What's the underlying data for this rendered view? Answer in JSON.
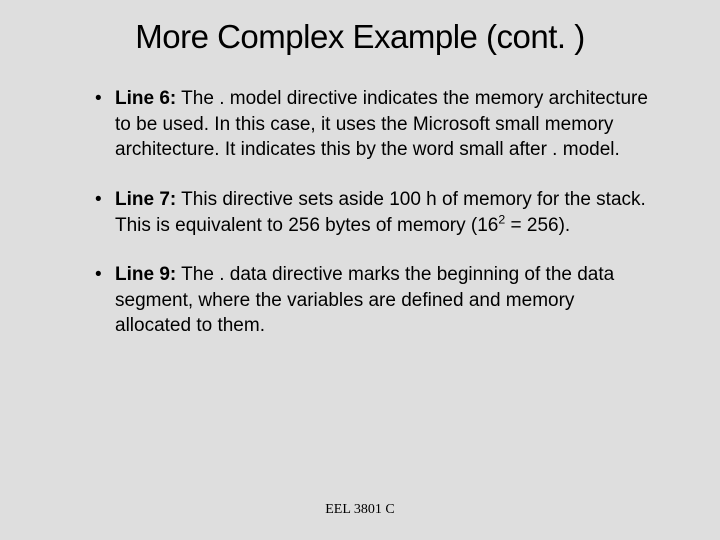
{
  "slide": {
    "background_color": "#dedede",
    "text_color": "#000000",
    "title": "More Complex Example (cont. )",
    "title_fontsize": 33,
    "body_fontsize": 19,
    "footer_fontsize": 14,
    "bullets": [
      {
        "label": "Line 6:",
        "text_before": " The . model directive indicates the memory architecture to be used.  In this case, it uses the Microsoft small memory architecture.  It indicates this by the word small after . model.",
        "sup": "",
        "text_after": ""
      },
      {
        "label": "Line 7:",
        "text_before": " This directive sets aside 100 h of memory for the stack.  This is equivalent to 256 bytes of memory (16",
        "sup": "2",
        "text_after": " = 256)."
      },
      {
        "label": "Line 9:",
        "text_before": " The . data directive marks the beginning of the data segment, where the variables are defined and memory allocated to them.",
        "sup": "",
        "text_after": ""
      }
    ],
    "footer": "EEL 3801 C"
  }
}
